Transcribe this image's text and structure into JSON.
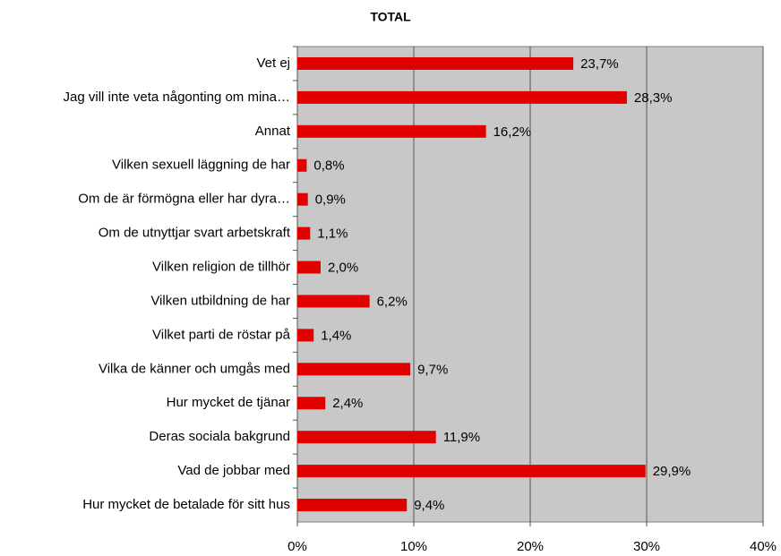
{
  "chart_data": {
    "type": "hbar",
    "title": "TOTAL",
    "categories": [
      "Vet ej",
      "Jag vill inte veta någonting om mina…",
      "Annat",
      "Vilken sexuell läggning de har",
      "Om de är förmögna eller har dyra…",
      "Om de utnyttjar svart arbetskraft",
      "Vilken religion de tillhör",
      "Vilken utbildning de har",
      "Vilket parti de röstar på",
      "Vilka de känner och umgås med",
      "Hur mycket de tjänar",
      "Deras sociala bakgrund",
      "Vad de jobbar med",
      "Hur mycket de betalade för sitt hus"
    ],
    "values": [
      23.7,
      28.3,
      16.2,
      0.8,
      0.9,
      1.1,
      2.0,
      6.2,
      1.4,
      9.7,
      2.4,
      11.9,
      29.9,
      9.4
    ],
    "value_labels": [
      "23,7%",
      "28,3%",
      "16,2%",
      "0,8%",
      "0,9%",
      "1,1%",
      "2,0%",
      "6,2%",
      "1,4%",
      "9,7%",
      "2,4%",
      "11,9%",
      "29,9%",
      "9,4%"
    ],
    "color": "#e00000",
    "xlim": [
      0,
      40
    ],
    "xticks": [
      {
        "value": 0,
        "label": "0%"
      },
      {
        "value": 10,
        "label": "10%"
      },
      {
        "value": 20,
        "label": "20%"
      },
      {
        "value": 30,
        "label": "30%"
      },
      {
        "value": 40,
        "label": "40%"
      }
    ],
    "grid": true
  }
}
